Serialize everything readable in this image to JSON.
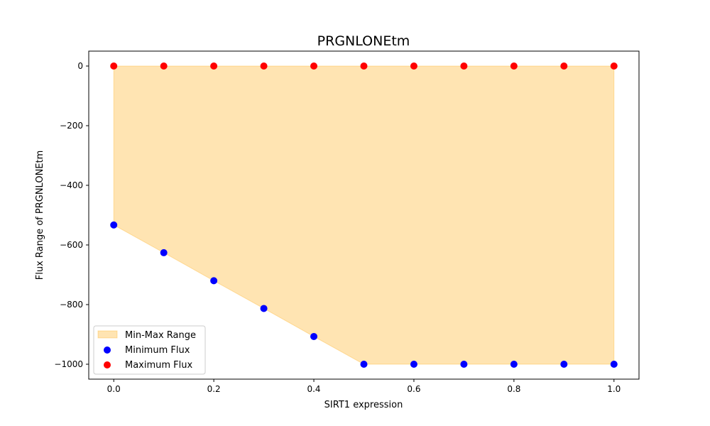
{
  "chart_data": {
    "type": "scatter",
    "title": "PRGNLONEtm",
    "xlabel": "SIRT1 expression",
    "ylabel": "Flux Range of PRGNLONEtm",
    "xlim": [
      -0.05,
      1.05
    ],
    "ylim": [
      -1050,
      50
    ],
    "xticks": [
      0.0,
      0.2,
      0.4,
      0.6,
      0.8,
      1.0
    ],
    "xtick_labels": [
      "0.0",
      "0.2",
      "0.4",
      "0.6",
      "0.8",
      "1.0"
    ],
    "yticks": [
      0,
      -200,
      -400,
      -600,
      -800,
      -1000
    ],
    "ytick_labels": [
      "0",
      "−200",
      "−400",
      "−600",
      "−800",
      "−1000"
    ],
    "x": [
      0.0,
      0.1,
      0.2,
      0.3,
      0.4,
      0.5,
      0.6,
      0.7,
      0.8,
      0.9,
      1.0
    ],
    "series": [
      {
        "name": "Minimum Flux",
        "color": "#0000ff",
        "values": [
          -533,
          -626,
          -720,
          -813,
          -907,
          -1000,
          -1000,
          -1000,
          -1000,
          -1000,
          -1000
        ]
      },
      {
        "name": "Maximum Flux",
        "color": "#ff0000",
        "values": [
          0,
          0,
          0,
          0,
          0,
          0,
          0,
          0,
          0,
          0,
          0
        ]
      }
    ],
    "fill": {
      "name": "Min-Max Range",
      "color": "#ffa500",
      "opacity": 0.3
    },
    "legend_position": "lower-left",
    "grid": false
  }
}
